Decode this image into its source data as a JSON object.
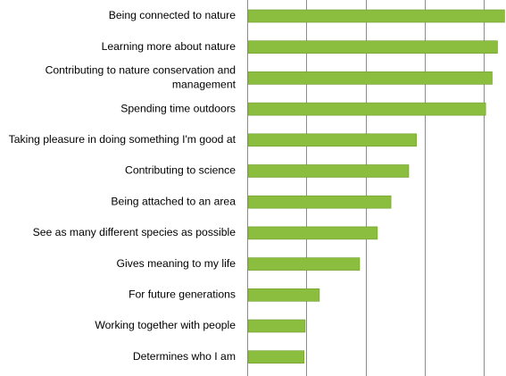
{
  "chart_data": {
    "type": "bar",
    "orientation": "horizontal",
    "categories": [
      [
        "Being connected to nature"
      ],
      [
        "Learning more about nature"
      ],
      [
        "Contributing to nature conservation and",
        "management"
      ],
      [
        "Spending time outdoors"
      ],
      [
        "Taking pleasure in doing something I'm good at"
      ],
      [
        "Contributing to science"
      ],
      [
        "Being attached to an area"
      ],
      [
        "See as many different species as possible"
      ],
      [
        "Gives meaning to my life"
      ],
      [
        "For future generations"
      ],
      [
        "Working together with people"
      ],
      [
        "Determines who I am"
      ]
    ],
    "values": [
      4.35,
      4.23,
      4.14,
      4.03,
      2.86,
      2.73,
      2.43,
      2.2,
      1.9,
      1.22,
      0.98,
      0.96
    ],
    "xlim": [
      0,
      4.4
    ],
    "gridlines": [
      0,
      1,
      2,
      3,
      4
    ],
    "grid": true,
    "legend": "none",
    "bar_color": "#8bbd3f",
    "bar_edge_color": "#6e9a2c",
    "grid_color": "#8c8c8c"
  }
}
